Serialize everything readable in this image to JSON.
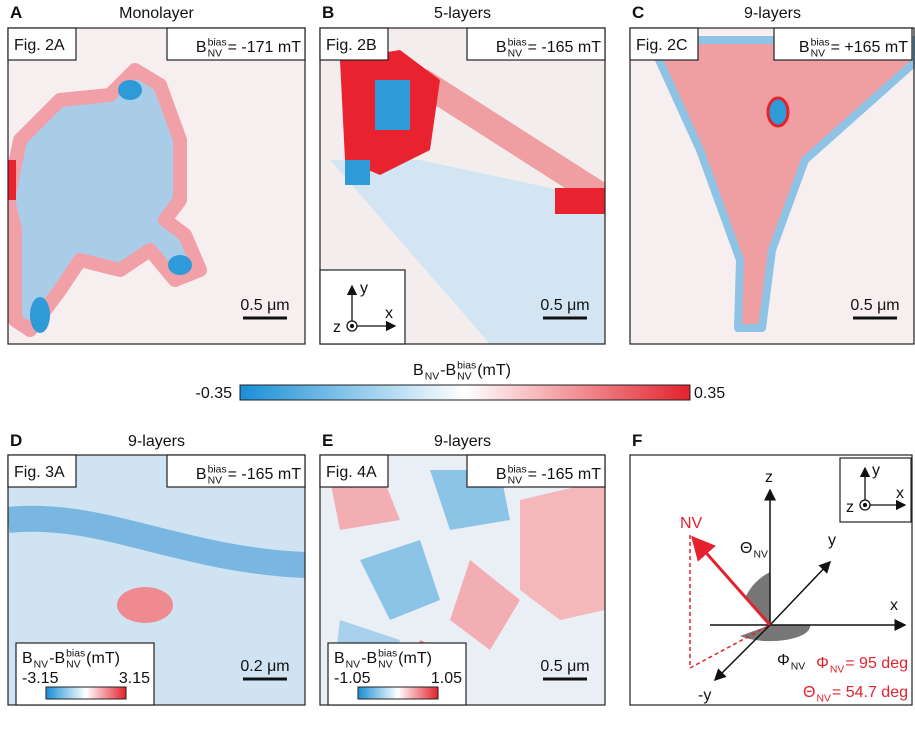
{
  "panels": [
    {
      "letter": "A",
      "title": "Monolayer",
      "figure": "Fig. 2A",
      "bias": [
        "B",
        "bias",
        "NV",
        "= -171 mT"
      ],
      "scale_bar": "0.5 μm"
    },
    {
      "letter": "B",
      "title": "5-layers",
      "figure": "Fig. 2B",
      "bias": [
        "B",
        "bias",
        "NV",
        "= -165 mT"
      ],
      "scale_bar": "0.5 μm",
      "axes": [
        "y",
        "z",
        "x"
      ]
    },
    {
      "letter": "C",
      "title": "9-layers",
      "figure": "Fig. 2C",
      "bias": [
        "B",
        "bias",
        "NV",
        "= +165 mT"
      ],
      "scale_bar": "0.5 μm"
    },
    {
      "letter": "D",
      "title": "9-layers",
      "figure": "Fig. 3A",
      "bias": [
        "B",
        "bias",
        "NV",
        "= -165 mT"
      ],
      "scale_bar": "0.2 μm",
      "colorbar": {
        "label": [
          "B",
          "NV",
          "-B",
          "bias",
          "NV",
          "(mT)"
        ],
        "min": "-3.15",
        "max": "3.15"
      }
    },
    {
      "letter": "E",
      "title": "9-layers",
      "figure": "Fig. 4A",
      "bias": [
        "B",
        "bias",
        "NV",
        "= -165 mT"
      ],
      "scale_bar": "0.5 μm",
      "colorbar": {
        "label": [
          "B",
          "NV",
          "-B",
          "bias",
          "NV",
          "(mT)"
        ],
        "min": "-1.05",
        "max": "1.05"
      }
    }
  ],
  "colorbar": {
    "label": [
      "B",
      "NV",
      "-B",
      "bias",
      "NV",
      "(mT)"
    ],
    "min": "-0.35",
    "max": "0.35"
  },
  "panel_f": {
    "letter": "F",
    "axes_inset": [
      "y",
      "z",
      "x"
    ],
    "axis_z": "z",
    "axis_y": "y",
    "axis_x": "x",
    "axis_neg_y": "-y",
    "nv": "NV",
    "theta": [
      "Θ",
      "NV"
    ],
    "phi": [
      "Φ",
      "NV"
    ],
    "phi_value": [
      "Φ",
      "NV",
      "= 95 deg"
    ],
    "theta_value": [
      "Θ",
      "NV",
      "= 54.7 deg"
    ]
  }
}
